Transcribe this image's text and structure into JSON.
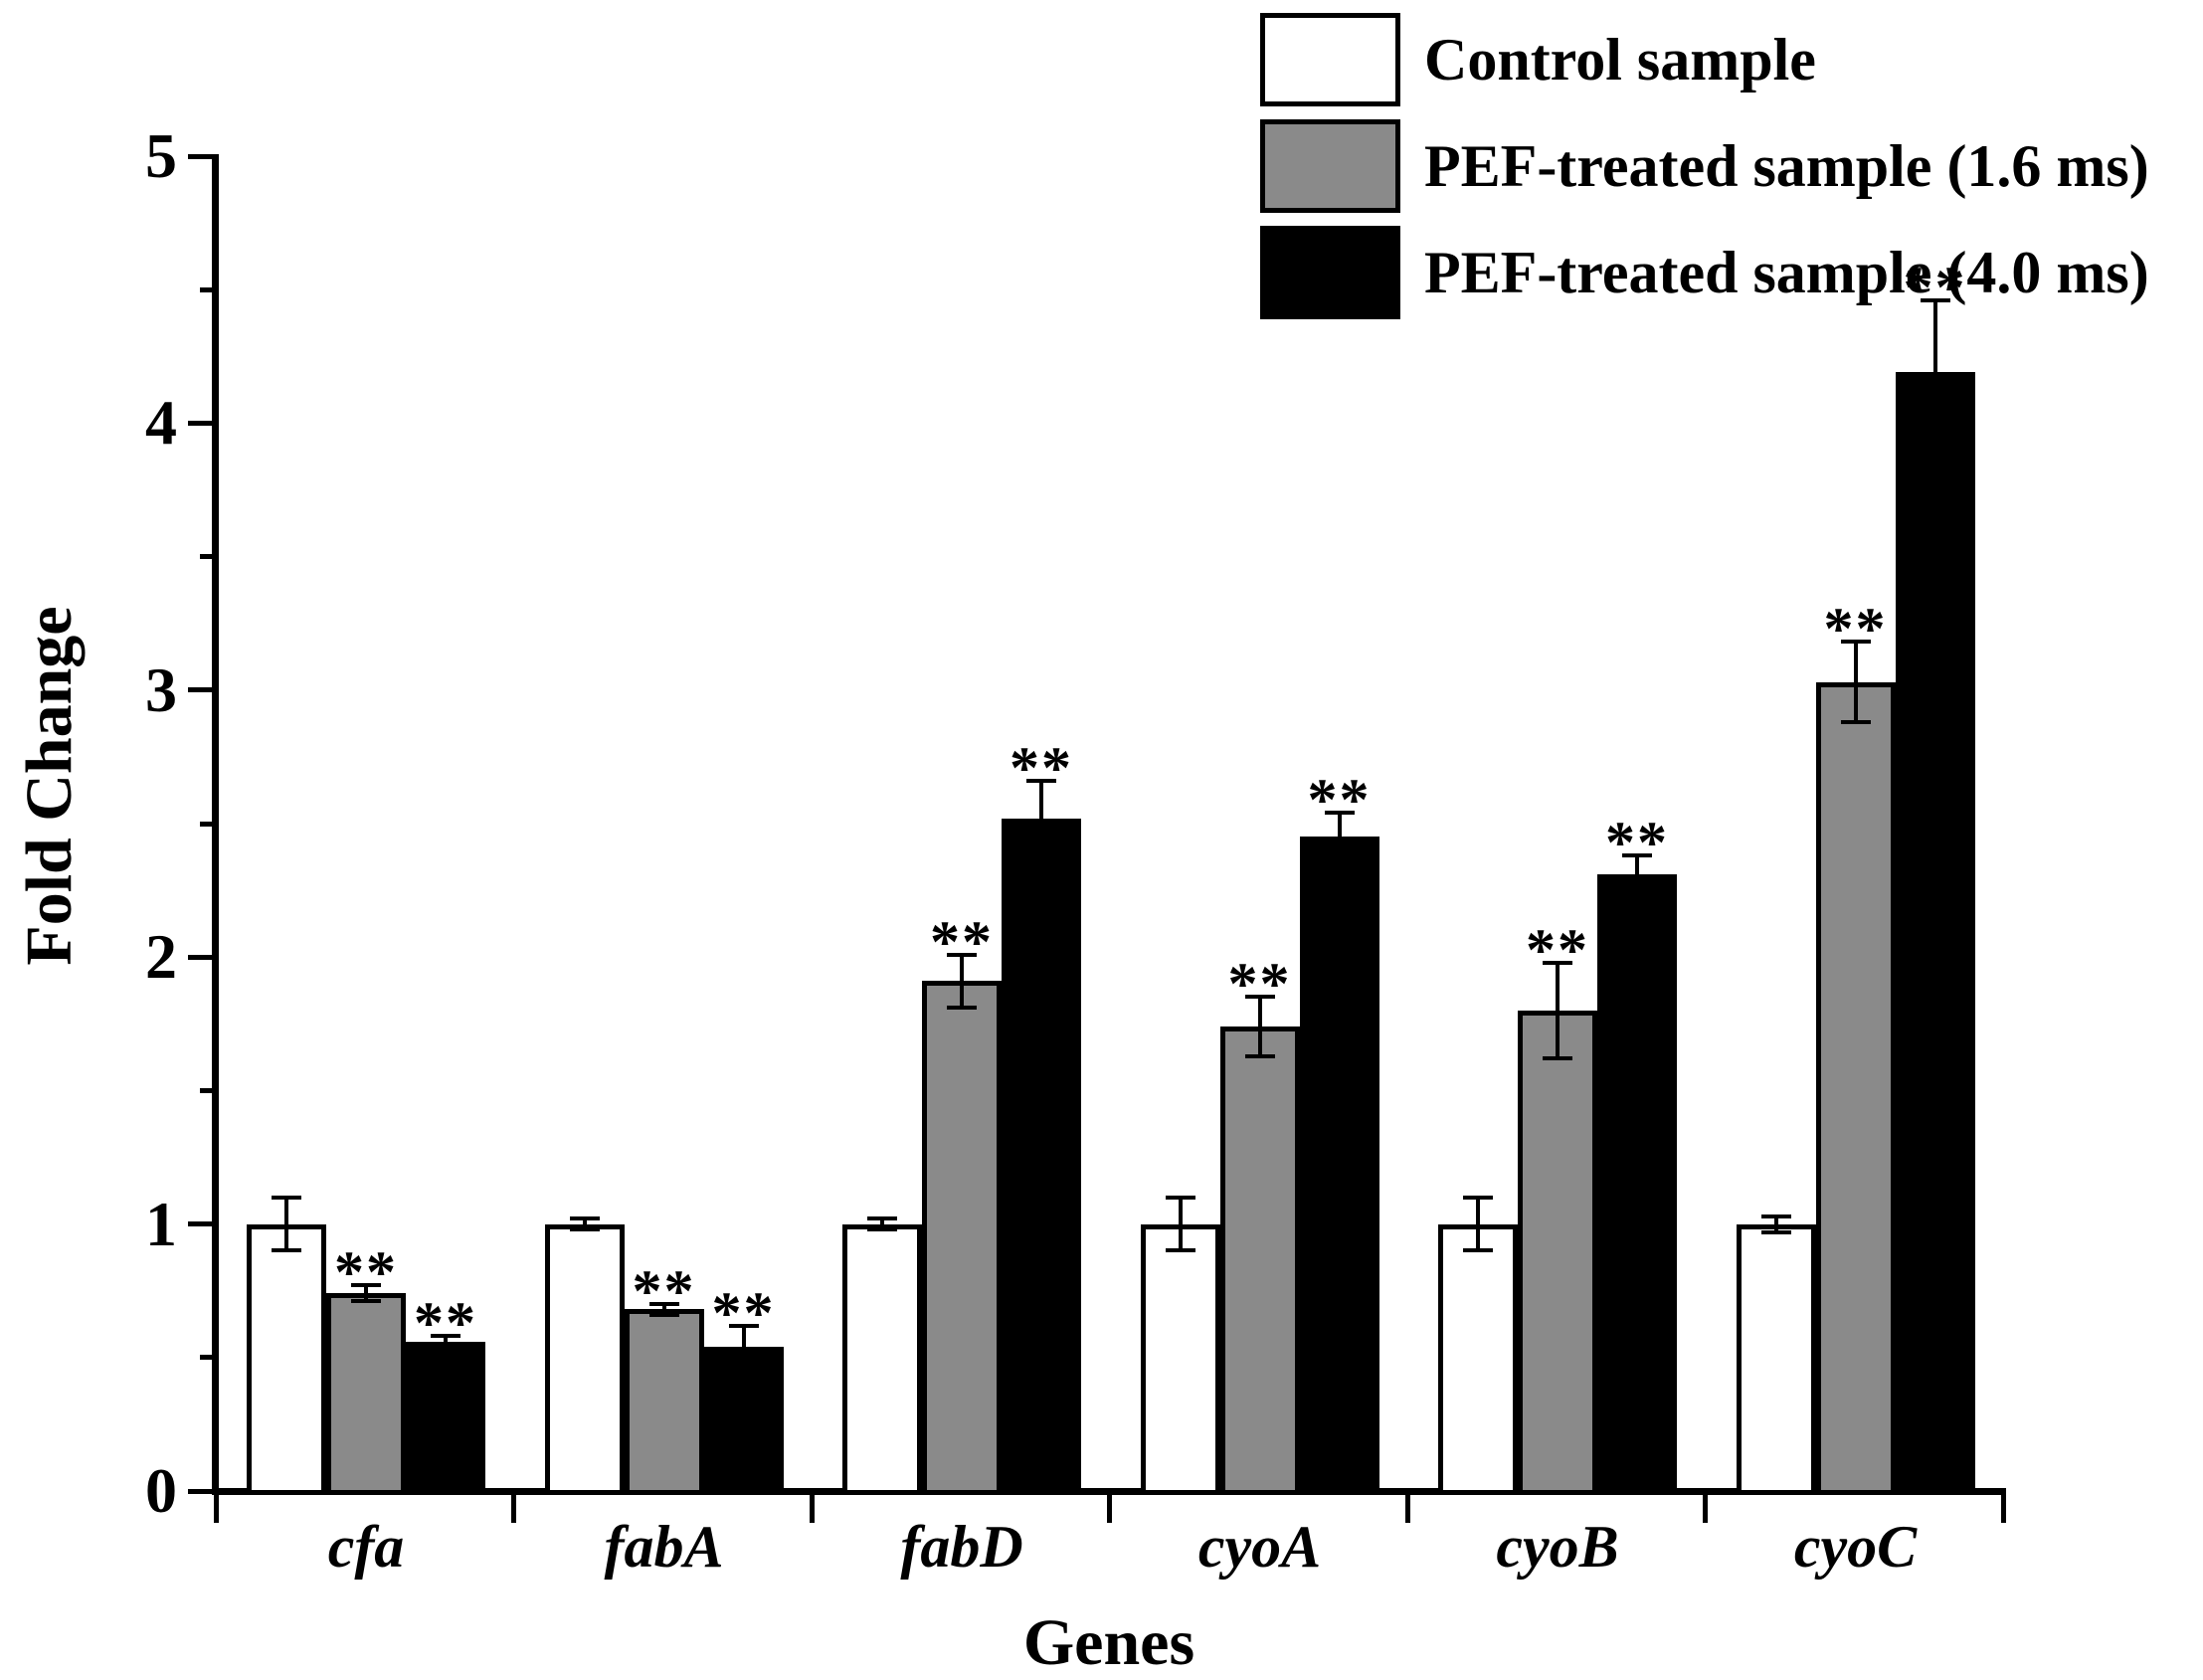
{
  "figure": {
    "background": "#ffffff",
    "axis_color": "#000000"
  },
  "chart_data": {
    "type": "bar",
    "title": "",
    "xlabel": "Genes",
    "ylabel": "Fold Change",
    "ylim": [
      0,
      5
    ],
    "yticks": [
      0,
      1,
      2,
      3,
      4,
      5
    ],
    "minor_yticks": [
      0.5,
      1.5,
      2.5,
      3.5,
      4.5
    ],
    "grid": false,
    "legend_position": "top-right",
    "categories": [
      "cfa",
      "fabA",
      "fabD",
      "cyoA",
      "cyoB",
      "cyoC"
    ],
    "series": [
      {
        "name": "Control sample",
        "fill": "#ffffff",
        "values": [
          1.0,
          1.0,
          1.0,
          1.0,
          1.0,
          1.0
        ],
        "errors": [
          0.1,
          0.02,
          0.02,
          0.1,
          0.1,
          0.03
        ],
        "significance": [
          "",
          "",
          "",
          "",
          "",
          ""
        ]
      },
      {
        "name": "PEF-treated sample (1.6 ms)",
        "fill": "#8a8a8a",
        "values": [
          0.74,
          0.68,
          1.91,
          1.74,
          1.8,
          3.03
        ],
        "errors": [
          0.03,
          0.02,
          0.1,
          0.11,
          0.18,
          0.15
        ],
        "significance": [
          "**",
          "**",
          "**",
          "**",
          "**",
          "**"
        ]
      },
      {
        "name": "PEF-treated sample (4.0 ms)",
        "fill": "#000000",
        "values": [
          0.56,
          0.54,
          2.52,
          2.45,
          2.31,
          4.19
        ],
        "errors": [
          0.02,
          0.08,
          0.14,
          0.09,
          0.07,
          0.27
        ],
        "significance": [
          "**",
          "**",
          "**",
          "**",
          "**",
          "**"
        ]
      }
    ]
  }
}
